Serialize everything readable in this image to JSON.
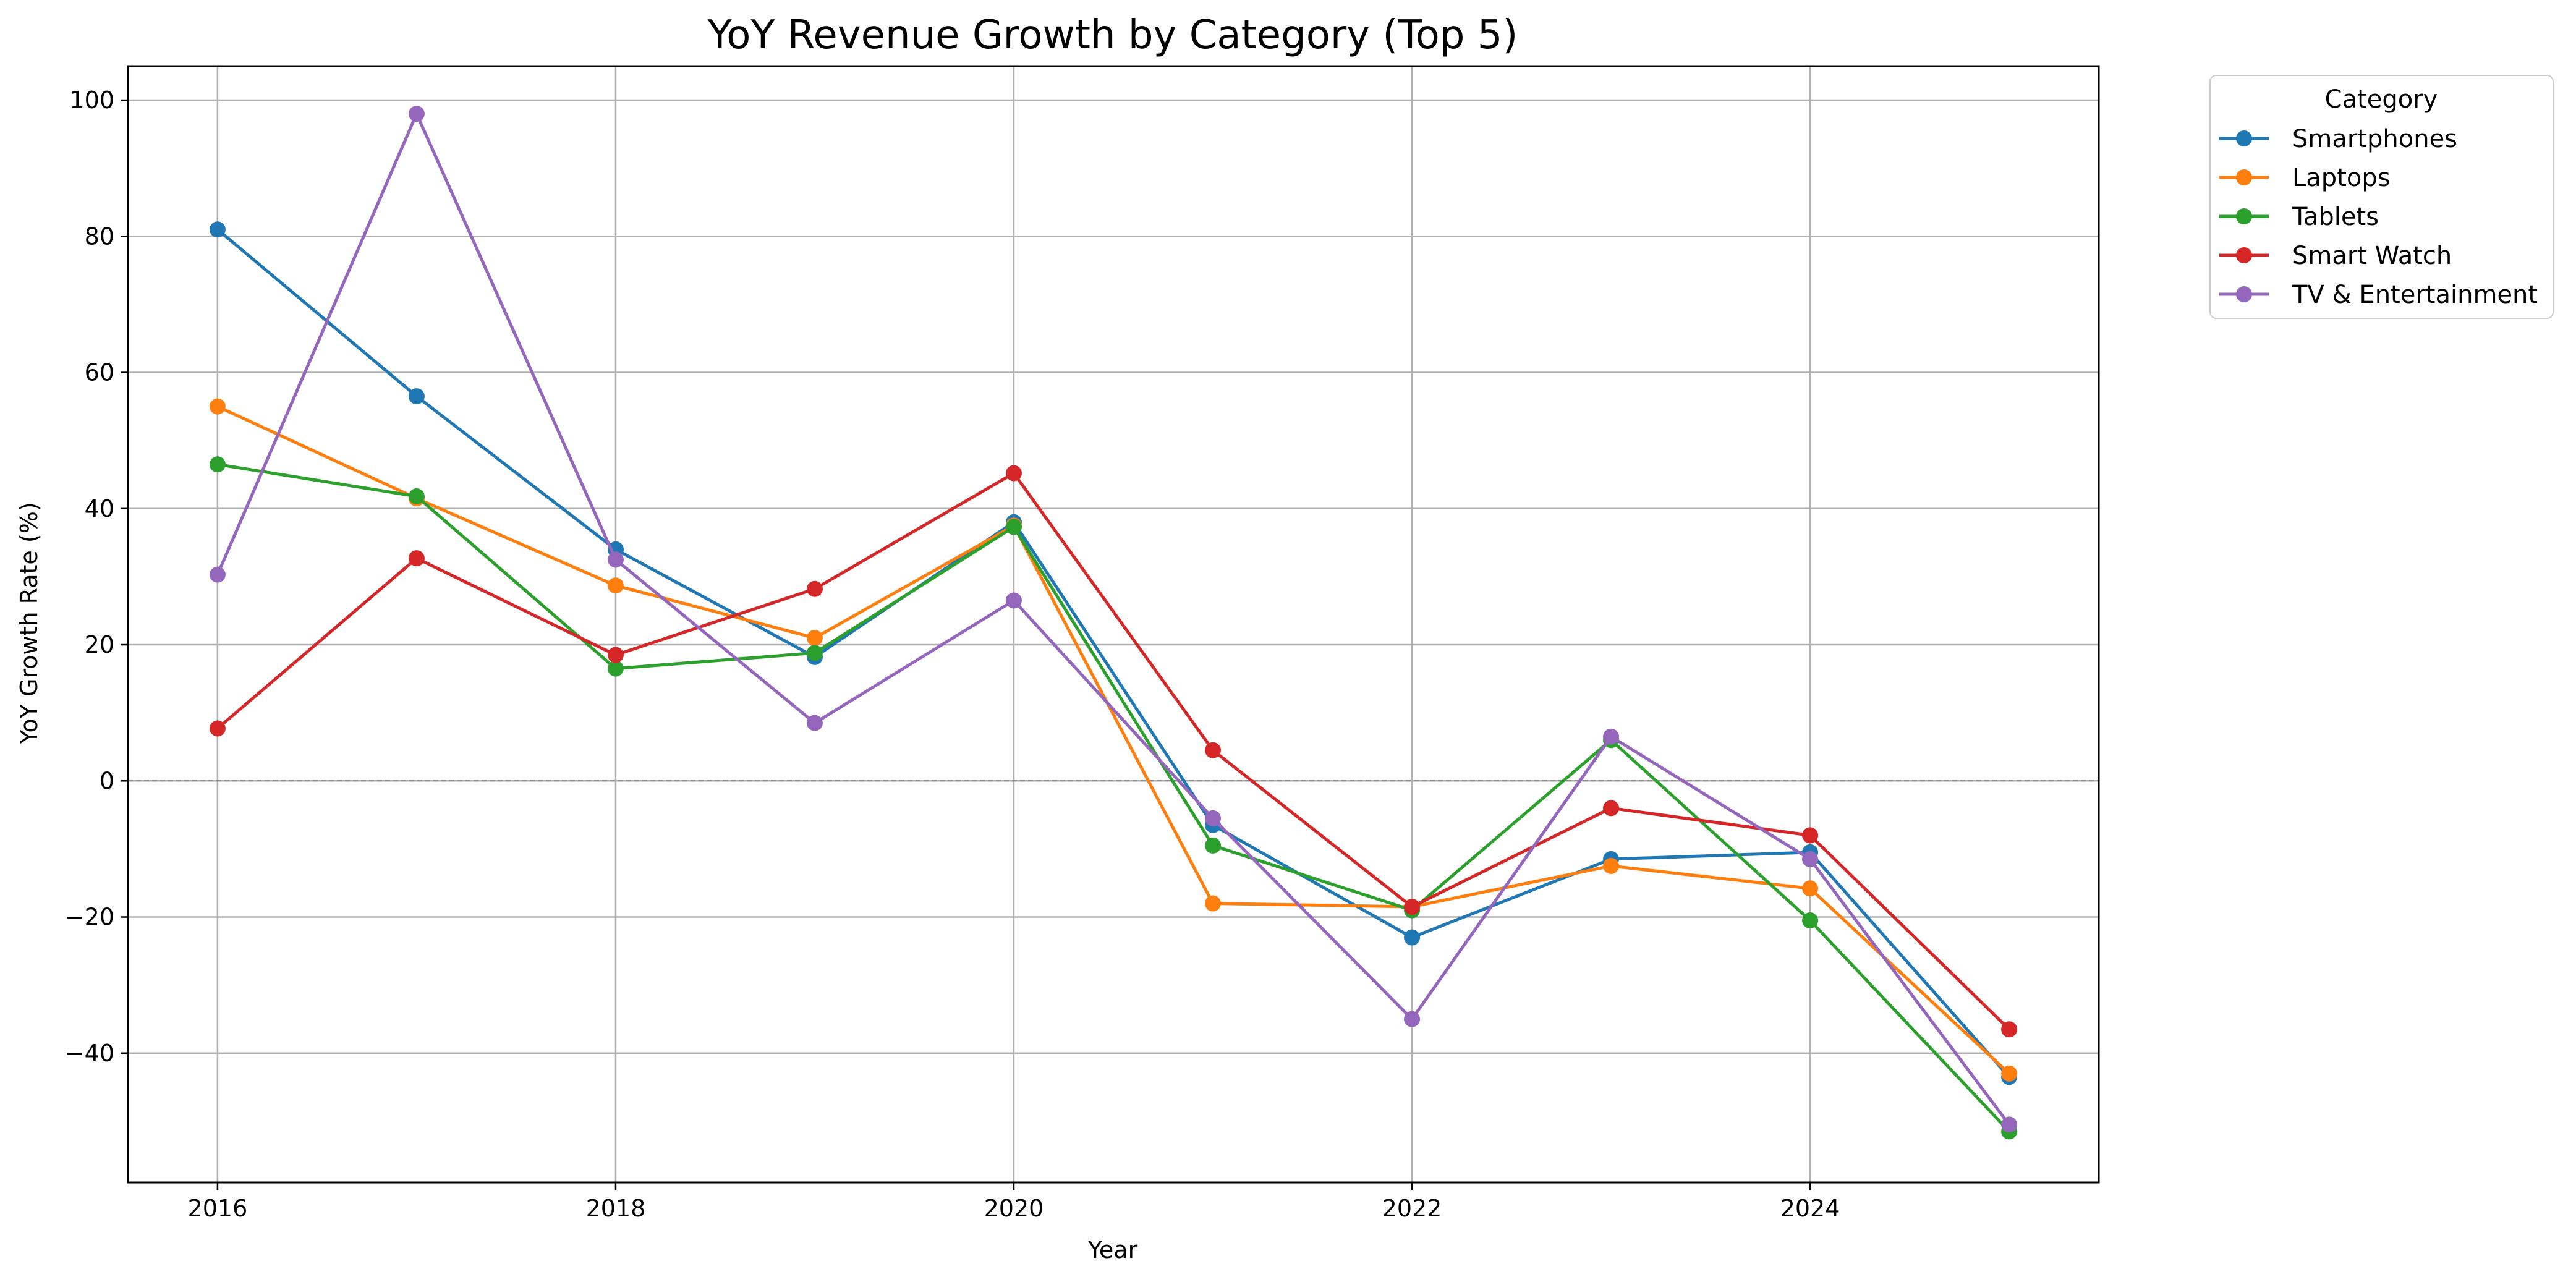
{
  "chart_data": {
    "type": "line",
    "title": "YoY Revenue Growth by Category (Top 5)",
    "xlabel": "Year",
    "ylabel": "YoY Growth Rate (%)",
    "x": [
      2016,
      2017,
      2018,
      2019,
      2020,
      2021,
      2022,
      2023,
      2024,
      2025
    ],
    "xlim": [
      2015.55,
      2025.45
    ],
    "ylim": [
      -59,
      105
    ],
    "xticks": [
      2016,
      2018,
      2020,
      2022,
      2024
    ],
    "yticks": [
      -40,
      -20,
      0,
      20,
      40,
      60,
      80,
      100
    ],
    "xtick_labels": [
      "2016",
      "2018",
      "2020",
      "2022",
      "2024"
    ],
    "ytick_labels": [
      "−40",
      "−20",
      "0",
      "20",
      "40",
      "60",
      "80",
      "100"
    ],
    "grid": true,
    "zero_line": true,
    "legend": {
      "title": "Category",
      "placement": "outside-top-right"
    },
    "series": [
      {
        "name": "Smartphones",
        "color": "#1f77b4",
        "values": [
          81,
          56.5,
          34,
          18.2,
          38,
          -6.5,
          -23,
          -11.5,
          -10.5,
          -43.5
        ]
      },
      {
        "name": "Laptops",
        "color": "#ff7f0e",
        "values": [
          55,
          41.5,
          28.7,
          21,
          37.5,
          -18,
          -18.5,
          -12.5,
          -15.8,
          -43
        ]
      },
      {
        "name": "Tablets",
        "color": "#2ca02c",
        "values": [
          46.5,
          41.8,
          16.5,
          18.8,
          37.3,
          -9.5,
          -19,
          6,
          -20.5,
          -51.5
        ]
      },
      {
        "name": "Smart Watch",
        "color": "#d62728",
        "values": [
          7.7,
          32.7,
          18.5,
          28.2,
          45.2,
          4.5,
          -18.5,
          -4,
          -8,
          -36.5
        ]
      },
      {
        "name": "TV & Entertainment",
        "color": "#9467bd",
        "values": [
          30.3,
          98,
          32.5,
          8.5,
          26.5,
          -5.5,
          -35,
          6.5,
          -11.5,
          -50.5
        ]
      }
    ]
  }
}
